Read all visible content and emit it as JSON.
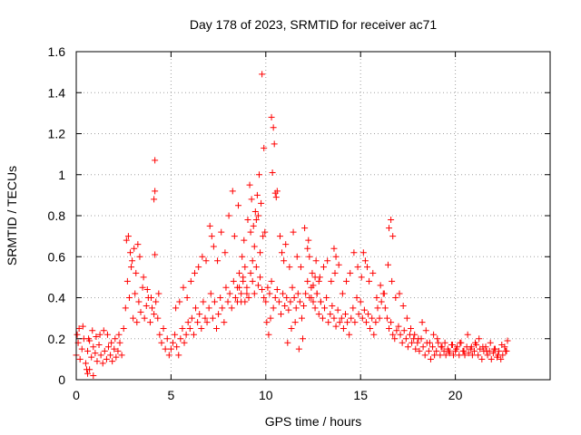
{
  "chart_data": {
    "type": "scatter",
    "title": "Day 178 of 2023, SRMTID for receiver ac71",
    "xlabel": "GPS time / hours",
    "ylabel": "SRMTID / TECUs",
    "xlim": [
      0,
      25
    ],
    "ylim": [
      0,
      1.6
    ],
    "grid": true,
    "marker": "plus",
    "series_color": "#ff0000",
    "x_ticks": [
      0,
      5,
      10,
      15,
      20
    ],
    "x_tick_labels": [
      "0",
      "5",
      "10",
      "15",
      "20"
    ],
    "y_ticks": [
      0,
      0.2,
      0.4,
      0.6,
      0.8,
      1.0,
      1.2,
      1.4,
      1.6
    ],
    "y_tick_labels": [
      "0",
      "0.2",
      "0.4",
      "0.6",
      "0.8",
      "1",
      "1.2",
      "1.4",
      "1.6"
    ],
    "series": [
      {
        "name": "SRMTID",
        "x": [
          0.0,
          0.1,
          0.2,
          0.3,
          0.4,
          0.5,
          0.6,
          0.7,
          0.8,
          0.9,
          1.0,
          1.1,
          1.2,
          1.3,
          1.4,
          1.5,
          1.6,
          1.7,
          1.8,
          1.9,
          2.0,
          2.1,
          2.2,
          2.3,
          2.4,
          2.5,
          2.6,
          2.7,
          2.8,
          2.9,
          3.0,
          3.1,
          3.2,
          3.3,
          3.4,
          3.5,
          3.6,
          3.7,
          3.8,
          3.9,
          4.0,
          4.1,
          4.2,
          4.3,
          4.4,
          4.5,
          4.6,
          4.7,
          4.8,
          4.9,
          5.0,
          5.1,
          5.2,
          5.3,
          5.4,
          5.5,
          5.6,
          5.7,
          5.8,
          5.9,
          6.0,
          6.1,
          6.2,
          6.3,
          6.4,
          6.5,
          6.6,
          6.7,
          6.8,
          6.9,
          7.0,
          7.1,
          7.2,
          7.3,
          7.4,
          7.5,
          7.6,
          7.7,
          7.8,
          7.9,
          8.0,
          8.1,
          8.2,
          8.3,
          8.4,
          8.5,
          8.6,
          8.7,
          8.8,
          8.9,
          9.0,
          9.1,
          9.2,
          9.3,
          9.4,
          9.5,
          9.6,
          9.7,
          9.8,
          9.9,
          10.0,
          10.1,
          10.2,
          10.3,
          10.4,
          10.5,
          10.6,
          10.7,
          10.8,
          10.9,
          11.0,
          11.1,
          11.2,
          11.3,
          11.4,
          11.5,
          11.6,
          11.7,
          11.8,
          11.9,
          12.0,
          12.1,
          12.2,
          12.3,
          12.4,
          12.5,
          12.6,
          12.7,
          12.8,
          12.9,
          13.0,
          13.1,
          13.2,
          13.3,
          13.4,
          13.5,
          13.6,
          13.7,
          13.8,
          13.9,
          14.0,
          14.1,
          14.2,
          14.3,
          14.4,
          14.5,
          14.6,
          14.7,
          14.8,
          14.9,
          15.0,
          15.1,
          15.2,
          15.3,
          15.4,
          15.5,
          15.6,
          15.7,
          15.8,
          15.9,
          16.0,
          16.1,
          16.2,
          16.3,
          16.4,
          16.5,
          16.6,
          16.7,
          16.8,
          16.9,
          17.0,
          17.1,
          17.2,
          17.3,
          17.4,
          17.5,
          17.6,
          17.7,
          17.8,
          17.9,
          18.0,
          18.1,
          18.2,
          18.3,
          18.4,
          18.5,
          18.6,
          18.7,
          18.8,
          18.9,
          19.0,
          19.1,
          19.2,
          19.3,
          19.4,
          19.5,
          19.6,
          19.7,
          19.8,
          19.9,
          20.0,
          20.1,
          20.2,
          20.3,
          20.4,
          20.5,
          20.6,
          20.7,
          20.8,
          20.9,
          21.0,
          21.1,
          21.2,
          21.3,
          21.4,
          21.5,
          21.6,
          21.7,
          21.8,
          21.9,
          22.0,
          22.1,
          22.2,
          22.3,
          22.4,
          22.5,
          22.6,
          22.7,
          0.05,
          0.15,
          0.35,
          0.55,
          0.65,
          0.85,
          1.05,
          1.25,
          1.45,
          1.65,
          1.85,
          2.05,
          2.25,
          2.65,
          2.75,
          2.85,
          2.95,
          3.05,
          3.15,
          3.25,
          3.35,
          3.55,
          3.75,
          3.95,
          4.15,
          4.35,
          4.15,
          4.15,
          4.1,
          5.25,
          5.45,
          5.65,
          5.85,
          6.05,
          6.25,
          6.45,
          6.65,
          6.85,
          7.05,
          7.15,
          7.25,
          7.45,
          7.65,
          7.85,
          8.05,
          8.25,
          8.35,
          8.55,
          8.75,
          8.85,
          9.05,
          9.15,
          9.25,
          9.35,
          9.45,
          9.55,
          9.65,
          9.75,
          9.85,
          9.95,
          9.8,
          9.9,
          10.3,
          10.4,
          10.45,
          10.35,
          10.5,
          10.55,
          10.6,
          9.2,
          9.3,
          9.4,
          9.5,
          9.6,
          9.7,
          10.75,
          10.85,
          10.95,
          11.05,
          11.25,
          11.45,
          11.65,
          11.85,
          12.05,
          12.25,
          12.45,
          12.65,
          12.85,
          12.2,
          12.3,
          13.6,
          13.7,
          13.05,
          13.25,
          13.45,
          13.65,
          13.85,
          14.05,
          14.25,
          14.45,
          14.65,
          14.85,
          15.05,
          15.15,
          15.25,
          15.35,
          15.45,
          15.65,
          15.85,
          16.05,
          16.25,
          16.45,
          16.65,
          16.85,
          16.5,
          16.6,
          16.7,
          17.05,
          17.25,
          17.45,
          17.65,
          17.85,
          18.05,
          18.25,
          18.45,
          18.65,
          18.85,
          19.05,
          19.25,
          19.45,
          19.65,
          19.85,
          20.05,
          20.25,
          20.45,
          20.65,
          20.85,
          21.05,
          21.25,
          21.45,
          21.65,
          21.85,
          22.05,
          22.25,
          22.45,
          22.65,
          22.75,
          0.7,
          0.9,
          0.6,
          12.4,
          12.5,
          12.6,
          12.7,
          12.8,
          12.9,
          8.5,
          8.6,
          8.7,
          8.8,
          8.9,
          9.0,
          10.05,
          10.15,
          10.25,
          11.15,
          11.35,
          11.55,
          11.75,
          11.95
        ],
        "y": [
          0.12,
          0.18,
          0.1,
          0.15,
          0.2,
          0.08,
          0.14,
          0.19,
          0.11,
          0.16,
          0.13,
          0.09,
          0.17,
          0.12,
          0.08,
          0.14,
          0.1,
          0.16,
          0.12,
          0.09,
          0.15,
          0.11,
          0.14,
          0.18,
          0.12,
          0.25,
          0.35,
          0.48,
          0.4,
          0.55,
          0.3,
          0.42,
          0.28,
          0.38,
          0.33,
          0.45,
          0.3,
          0.36,
          0.4,
          0.28,
          0.35,
          0.32,
          0.38,
          0.3,
          0.22,
          0.18,
          0.25,
          0.15,
          0.2,
          0.12,
          0.15,
          0.18,
          0.22,
          0.16,
          0.12,
          0.2,
          0.25,
          0.18,
          0.22,
          0.28,
          0.25,
          0.3,
          0.22,
          0.35,
          0.28,
          0.32,
          0.25,
          0.38,
          0.3,
          0.28,
          0.35,
          0.42,
          0.3,
          0.38,
          0.25,
          0.32,
          0.4,
          0.35,
          0.28,
          0.45,
          0.38,
          0.42,
          0.35,
          0.48,
          0.4,
          0.38,
          0.45,
          0.42,
          0.5,
          0.38,
          0.45,
          0.4,
          0.52,
          0.48,
          0.42,
          0.55,
          0.46,
          0.5,
          0.44,
          0.4,
          0.38,
          0.45,
          0.42,
          0.48,
          0.35,
          0.4,
          0.44,
          0.38,
          0.32,
          0.42,
          0.36,
          0.4,
          0.34,
          0.38,
          0.45,
          0.4,
          0.35,
          0.42,
          0.38,
          0.3,
          0.36,
          0.42,
          0.48,
          0.4,
          0.45,
          0.38,
          0.35,
          0.42,
          0.32,
          0.38,
          0.3,
          0.35,
          0.4,
          0.28,
          0.32,
          0.36,
          0.3,
          0.26,
          0.34,
          0.28,
          0.3,
          0.25,
          0.32,
          0.28,
          0.22,
          0.3,
          0.35,
          0.28,
          0.4,
          0.32,
          0.38,
          0.3,
          0.34,
          0.28,
          0.32,
          0.25,
          0.3,
          0.22,
          0.28,
          0.35,
          0.3,
          0.38,
          0.42,
          0.35,
          0.3,
          0.25,
          0.28,
          0.22,
          0.2,
          0.24,
          0.26,
          0.22,
          0.18,
          0.24,
          0.2,
          0.16,
          0.22,
          0.18,
          0.2,
          0.15,
          0.18,
          0.14,
          0.2,
          0.16,
          0.12,
          0.18,
          0.14,
          0.1,
          0.16,
          0.12,
          0.14,
          0.18,
          0.12,
          0.16,
          0.14,
          0.12,
          0.15,
          0.13,
          0.17,
          0.12,
          0.14,
          0.16,
          0.12,
          0.18,
          0.14,
          0.12,
          0.16,
          0.13,
          0.15,
          0.12,
          0.14,
          0.17,
          0.12,
          0.15,
          0.1,
          0.14,
          0.16,
          0.12,
          0.14,
          0.1,
          0.13,
          0.15,
          0.11,
          0.14,
          0.1,
          0.12,
          0.16,
          0.14,
          0.22,
          0.25,
          0.26,
          0.05,
          0.2,
          0.24,
          0.21,
          0.22,
          0.24,
          0.22,
          0.18,
          0.2,
          0.22,
          0.68,
          0.7,
          0.62,
          0.58,
          0.64,
          0.52,
          0.66,
          0.6,
          0.5,
          0.44,
          0.4,
          0.61,
          0.42,
          1.07,
          0.92,
          0.88,
          0.35,
          0.38,
          0.45,
          0.4,
          0.48,
          0.52,
          0.55,
          0.6,
          0.58,
          0.75,
          0.7,
          0.65,
          0.58,
          0.72,
          0.62,
          0.8,
          0.92,
          0.7,
          0.85,
          0.6,
          0.68,
          0.78,
          0.95,
          0.88,
          0.75,
          0.82,
          0.9,
          1.0,
          0.86,
          0.7,
          0.72,
          1.49,
          1.13,
          1.28,
          1.23,
          1.15,
          1.01,
          0.91,
          0.89,
          0.92,
          0.72,
          0.58,
          0.65,
          0.78,
          0.8,
          0.62,
          0.7,
          0.62,
          0.58,
          0.66,
          0.55,
          0.72,
          0.6,
          0.55,
          0.74,
          0.68,
          0.52,
          0.58,
          0.5,
          0.64,
          0.6,
          0.64,
          0.6,
          0.55,
          0.58,
          0.48,
          0.52,
          0.56,
          0.42,
          0.48,
          0.52,
          0.62,
          0.55,
          0.5,
          0.62,
          0.58,
          0.55,
          0.48,
          0.52,
          0.4,
          0.46,
          0.42,
          0.56,
          0.48,
          0.4,
          0.74,
          0.78,
          0.7,
          0.42,
          0.36,
          0.3,
          0.25,
          0.22,
          0.2,
          0.28,
          0.24,
          0.18,
          0.22,
          0.2,
          0.16,
          0.18,
          0.14,
          0.17,
          0.15,
          0.18,
          0.14,
          0.22,
          0.16,
          0.18,
          0.2,
          0.16,
          0.14,
          0.18,
          0.15,
          0.12,
          0.17,
          0.14,
          0.19,
          0.05,
          0.02,
          0.03,
          0.4,
          0.46,
          0.5,
          0.42,
          0.48,
          0.38,
          0.45,
          0.52,
          0.38,
          0.48,
          0.55,
          0.42,
          0.28,
          0.22,
          0.3,
          0.18,
          0.25,
          0.28,
          0.15,
          0.2
        ]
      }
    ]
  }
}
